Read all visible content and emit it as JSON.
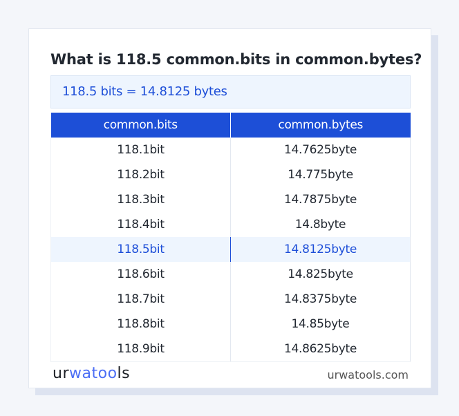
{
  "title": "What is 118.5 common.bits in common.bytes?",
  "result": "118.5 bits = 14.8125 bytes",
  "table": {
    "headers": [
      "common.bits",
      "common.bytes"
    ],
    "rows": [
      [
        "118.1bit",
        "14.7625byte"
      ],
      [
        "118.2bit",
        "14.775byte"
      ],
      [
        "118.3bit",
        "14.7875byte"
      ],
      [
        "118.4bit",
        "14.8byte"
      ],
      [
        "118.5bit",
        "14.8125byte"
      ],
      [
        "118.6bit",
        "14.825byte"
      ],
      [
        "118.7bit",
        "14.8375byte"
      ],
      [
        "118.8bit",
        "14.85byte"
      ],
      [
        "118.9bit",
        "14.8625byte"
      ]
    ],
    "highlighted_row": 4
  },
  "footer": {
    "logo_a": "ur",
    "logo_b": "wat",
    "logo_c": "oo",
    "logo_d": "ls",
    "site": "urwatools.com"
  },
  "colors": {
    "accent": "#1d4fd7",
    "highlight_bg": "#eef5fe"
  }
}
